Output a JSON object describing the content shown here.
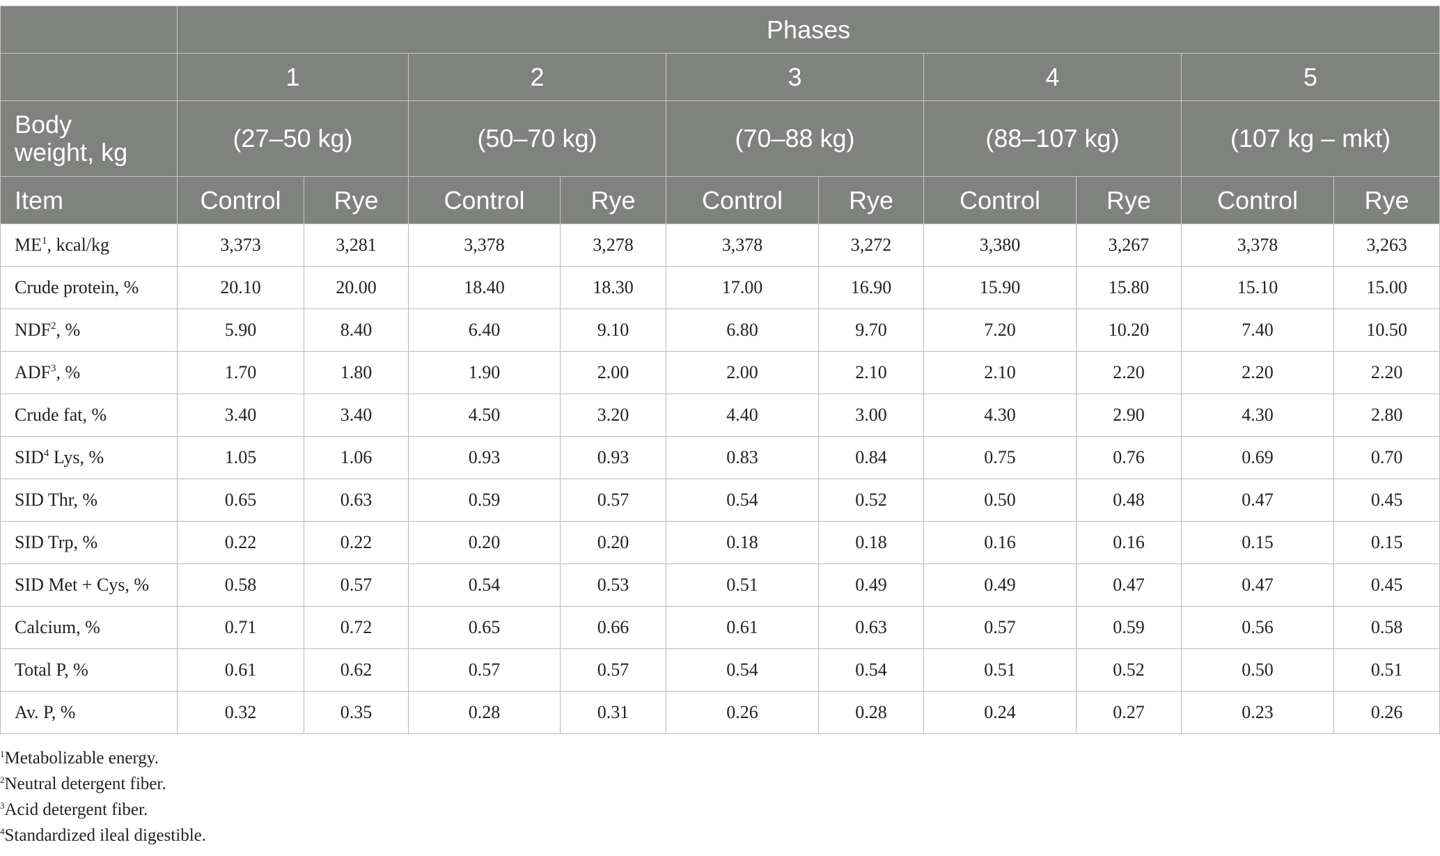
{
  "table": {
    "phases_header": "Phases",
    "phase_numbers": [
      "1",
      "2",
      "3",
      "4",
      "5"
    ],
    "body_weight_label": "Body weight, kg",
    "body_weight_line1": "Body",
    "body_weight_line2": "weight, kg",
    "phase_weights": [
      "(27–50 kg)",
      "(50–70 kg)",
      "(70–88 kg)",
      "(88–107 kg)",
      "(107 kg – mkt)"
    ],
    "item_label": "Item",
    "treatment_labels": [
      "Control",
      "Rye"
    ],
    "rows": [
      {
        "label": "ME",
        "sup": "1",
        "label_suffix": ", kcal/kg",
        "values": [
          "3,373",
          "3,281",
          "3,378",
          "3,278",
          "3,378",
          "3,272",
          "3,380",
          "3,267",
          "3,378",
          "3,263"
        ]
      },
      {
        "label": "Crude protein, %",
        "sup": "",
        "label_suffix": "",
        "values": [
          "20.10",
          "20.00",
          "18.40",
          "18.30",
          "17.00",
          "16.90",
          "15.90",
          "15.80",
          "15.10",
          "15.00"
        ]
      },
      {
        "label": "NDF",
        "sup": "2",
        "label_suffix": ", %",
        "values": [
          "5.90",
          "8.40",
          "6.40",
          "9.10",
          "6.80",
          "9.70",
          "7.20",
          "10.20",
          "7.40",
          "10.50"
        ]
      },
      {
        "label": "ADF",
        "sup": "3",
        "label_suffix": ", %",
        "values": [
          "1.70",
          "1.80",
          "1.90",
          "2.00",
          "2.00",
          "2.10",
          "2.10",
          "2.20",
          "2.20",
          "2.20"
        ]
      },
      {
        "label": "Crude fat, %",
        "sup": "",
        "label_suffix": "",
        "values": [
          "3.40",
          "3.40",
          "4.50",
          "3.20",
          "4.40",
          "3.00",
          "4.30",
          "2.90",
          "4.30",
          "2.80"
        ]
      },
      {
        "label": "SID",
        "sup": "4",
        "label_suffix": " Lys, %",
        "values": [
          "1.05",
          "1.06",
          "0.93",
          "0.93",
          "0.83",
          "0.84",
          "0.75",
          "0.76",
          "0.69",
          "0.70"
        ]
      },
      {
        "label": "SID Thr, %",
        "sup": "",
        "label_suffix": "",
        "values": [
          "0.65",
          "0.63",
          "0.59",
          "0.57",
          "0.54",
          "0.52",
          "0.50",
          "0.48",
          "0.47",
          "0.45"
        ]
      },
      {
        "label": "SID Trp, %",
        "sup": "",
        "label_suffix": "",
        "values": [
          "0.22",
          "0.22",
          "0.20",
          "0.20",
          "0.18",
          "0.18",
          "0.16",
          "0.16",
          "0.15",
          "0.15"
        ]
      },
      {
        "label": "SID Met + Cys, %",
        "sup": "",
        "label_suffix": "",
        "values": [
          "0.58",
          "0.57",
          "0.54",
          "0.53",
          "0.51",
          "0.49",
          "0.49",
          "0.47",
          "0.47",
          "0.45"
        ]
      },
      {
        "label": "Calcium, %",
        "sup": "",
        "label_suffix": "",
        "values": [
          "0.71",
          "0.72",
          "0.65",
          "0.66",
          "0.61",
          "0.63",
          "0.57",
          "0.59",
          "0.56",
          "0.58"
        ]
      },
      {
        "label": "Total P, %",
        "sup": "",
        "label_suffix": "",
        "values": [
          "0.61",
          "0.62",
          "0.57",
          "0.57",
          "0.54",
          "0.54",
          "0.51",
          "0.52",
          "0.50",
          "0.51"
        ]
      },
      {
        "label": "Av. P, %",
        "sup": "",
        "label_suffix": "",
        "values": [
          "0.32",
          "0.35",
          "0.28",
          "0.31",
          "0.26",
          "0.28",
          "0.24",
          "0.27",
          "0.23",
          "0.26"
        ]
      }
    ]
  },
  "footnotes": [
    {
      "mark": "1",
      "text": "Metabolizable energy."
    },
    {
      "mark": "2",
      "text": "Neutral detergent fiber."
    },
    {
      "mark": "3",
      "text": "Acid detergent fiber."
    },
    {
      "mark": "4",
      "text": "Standardized ileal digestible."
    }
  ],
  "colors": {
    "header_bg": "#80827f",
    "header_text": "#ffffff",
    "grid": "#b9b9b9"
  }
}
